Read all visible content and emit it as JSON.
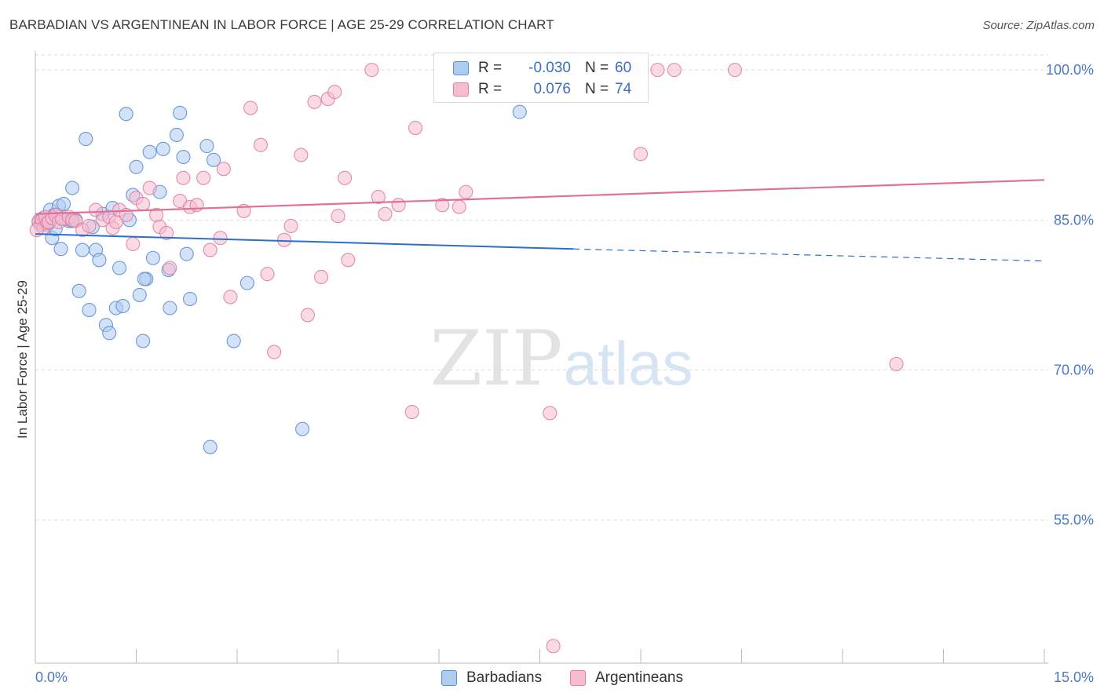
{
  "title": "BARBADIAN VS ARGENTINEAN IN LABOR FORCE | AGE 25-29 CORRELATION CHART",
  "source": "Source: ZipAtlas.com",
  "watermark": {
    "zip": "ZIP",
    "atlas": "atlas"
  },
  "legend": {
    "rows": [
      {
        "r_label": "R =",
        "r_value": "-0.030",
        "n_label": "N =",
        "n_value": "60"
      },
      {
        "r_label": "R =",
        "r_value": "0.076",
        "n_label": "N =",
        "n_value": "74"
      }
    ]
  },
  "colors": {
    "blue_fill": "#aecbf0",
    "blue_stroke": "#5b8fd4",
    "blue_line": "#2b6fcc",
    "pink_fill": "#f6bcd0",
    "pink_stroke": "#e07fa0",
    "pink_line": "#e0709a",
    "tick_text": "#4a78c8",
    "grid": "#d9d9d9"
  },
  "chart_data": {
    "type": "scatter",
    "title": "BARBADIAN VS ARGENTINEAN IN LABOR FORCE | AGE 25-29 CORRELATION CHART",
    "xlabel": "",
    "ylabel": "In Labor Force | Age 25-29",
    "xlim": [
      0,
      15
    ],
    "ylim": [
      40.7,
      101.5
    ],
    "x_tick_labels": [
      "0.0%",
      "15.0%"
    ],
    "y_ticks": [
      {
        "value": 100,
        "label": "100.0%"
      },
      {
        "value": 85,
        "label": "85.0%"
      },
      {
        "value": 70,
        "label": "70.0%"
      },
      {
        "value": 55,
        "label": "55.0%"
      }
    ],
    "grid": "horizontal dashed",
    "legend_position": "bottom-center",
    "series": [
      {
        "name": "Barbadians",
        "R": -0.03,
        "N": 60,
        "trend": {
          "x0": 0.0,
          "y0": 83.6,
          "x1": 8.0,
          "y1": 82.1,
          "dashed_to_x": 15.0,
          "dashed_to_y": 80.9
        },
        "points": [
          [
            0.05,
            84.8
          ],
          [
            0.08,
            85.0
          ],
          [
            0.1,
            84.6
          ],
          [
            0.12,
            85.2
          ],
          [
            0.15,
            84.9
          ],
          [
            0.18,
            84.5
          ],
          [
            0.2,
            84.7
          ],
          [
            0.22,
            86.0
          ],
          [
            0.25,
            83.2
          ],
          [
            0.28,
            85.5
          ],
          [
            0.3,
            84.1
          ],
          [
            0.35,
            86.4
          ],
          [
            0.38,
            82.1
          ],
          [
            0.42,
            86.6
          ],
          [
            0.45,
            85.1
          ],
          [
            0.5,
            84.9
          ],
          [
            0.55,
            88.2
          ],
          [
            0.6,
            85.0
          ],
          [
            0.65,
            77.9
          ],
          [
            0.7,
            82.0
          ],
          [
            0.75,
            93.1
          ],
          [
            0.8,
            76.0
          ],
          [
            0.85,
            84.3
          ],
          [
            0.9,
            82.0
          ],
          [
            0.95,
            81.0
          ],
          [
            1.0,
            85.6
          ],
          [
            1.05,
            74.5
          ],
          [
            1.1,
            73.7
          ],
          [
            1.15,
            86.2
          ],
          [
            1.2,
            76.2
          ],
          [
            1.25,
            80.2
          ],
          [
            1.3,
            76.4
          ],
          [
            1.35,
            95.6
          ],
          [
            1.4,
            85.0
          ],
          [
            1.45,
            87.5
          ],
          [
            1.5,
            90.3
          ],
          [
            1.55,
            77.5
          ],
          [
            1.6,
            72.9
          ],
          [
            1.65,
            79.1
          ],
          [
            1.7,
            91.8
          ],
          [
            1.75,
            81.2
          ],
          [
            1.85,
            87.8
          ],
          [
            1.9,
            92.1
          ],
          [
            1.98,
            80.0
          ],
          [
            2.0,
            76.2
          ],
          [
            2.1,
            93.5
          ],
          [
            2.15,
            95.7
          ],
          [
            2.2,
            91.3
          ],
          [
            2.25,
            81.6
          ],
          [
            2.3,
            77.1
          ],
          [
            2.55,
            92.4
          ],
          [
            2.6,
            62.3
          ],
          [
            2.65,
            91.0
          ],
          [
            2.95,
            72.9
          ],
          [
            3.15,
            78.7
          ],
          [
            3.97,
            64.1
          ],
          [
            7.2,
            95.8
          ],
          [
            7.7,
            100.0
          ],
          [
            1.62,
            79.1
          ],
          [
            0.55,
            84.9
          ]
        ]
      },
      {
        "name": "Argentineans",
        "R": 0.076,
        "N": 74,
        "trend": {
          "x0": 0.0,
          "y0": 85.6,
          "x1": 15.0,
          "y1": 89.0
        },
        "points": [
          [
            0.05,
            84.9
          ],
          [
            0.08,
            84.5
          ],
          [
            0.1,
            85.0
          ],
          [
            0.12,
            84.2
          ],
          [
            0.15,
            85.3
          ],
          [
            0.18,
            84.7
          ],
          [
            0.2,
            84.8
          ],
          [
            0.25,
            85.2
          ],
          [
            0.3,
            85.5
          ],
          [
            0.35,
            84.8
          ],
          [
            0.4,
            85.1
          ],
          [
            0.5,
            85.3
          ],
          [
            0.55,
            85.0
          ],
          [
            0.6,
            84.9
          ],
          [
            0.7,
            84.0
          ],
          [
            0.8,
            84.4
          ],
          [
            0.9,
            86.0
          ],
          [
            1.0,
            85.0
          ],
          [
            1.1,
            85.3
          ],
          [
            1.15,
            84.2
          ],
          [
            1.2,
            84.8
          ],
          [
            1.25,
            86.0
          ],
          [
            1.35,
            85.5
          ],
          [
            1.45,
            82.6
          ],
          [
            1.5,
            87.2
          ],
          [
            1.6,
            86.6
          ],
          [
            1.7,
            88.2
          ],
          [
            1.8,
            85.5
          ],
          [
            1.85,
            84.3
          ],
          [
            1.95,
            83.7
          ],
          [
            2.0,
            80.2
          ],
          [
            2.15,
            86.9
          ],
          [
            2.2,
            89.2
          ],
          [
            2.3,
            86.3
          ],
          [
            2.4,
            86.5
          ],
          [
            2.5,
            89.2
          ],
          [
            2.6,
            82.0
          ],
          [
            2.75,
            83.2
          ],
          [
            2.8,
            90.1
          ],
          [
            2.9,
            77.3
          ],
          [
            3.1,
            85.9
          ],
          [
            3.2,
            96.2
          ],
          [
            3.35,
            92.5
          ],
          [
            3.45,
            79.6
          ],
          [
            3.55,
            71.8
          ],
          [
            3.7,
            83.0
          ],
          [
            3.8,
            84.4
          ],
          [
            3.95,
            91.5
          ],
          [
            4.05,
            75.5
          ],
          [
            4.15,
            96.8
          ],
          [
            4.25,
            79.3
          ],
          [
            4.35,
            97.1
          ],
          [
            4.45,
            97.8
          ],
          [
            4.5,
            85.4
          ],
          [
            4.6,
            89.2
          ],
          [
            4.65,
            81.0
          ],
          [
            5.0,
            100.0
          ],
          [
            5.1,
            87.3
          ],
          [
            5.2,
            85.6
          ],
          [
            5.4,
            86.5
          ],
          [
            5.6,
            65.8
          ],
          [
            5.65,
            94.2
          ],
          [
            6.05,
            86.5
          ],
          [
            6.3,
            86.3
          ],
          [
            6.4,
            87.8
          ],
          [
            7.65,
            65.7
          ],
          [
            7.7,
            42.4
          ],
          [
            8.9,
            100.0
          ],
          [
            9.0,
            91.6
          ],
          [
            9.25,
            100.0
          ],
          [
            9.5,
            100.0
          ],
          [
            10.4,
            100.0
          ],
          [
            12.8,
            70.6
          ],
          [
            0.02,
            84.0
          ]
        ]
      }
    ]
  },
  "bottom_legend": {
    "items": [
      "Barbadians",
      "Argentineans"
    ]
  }
}
